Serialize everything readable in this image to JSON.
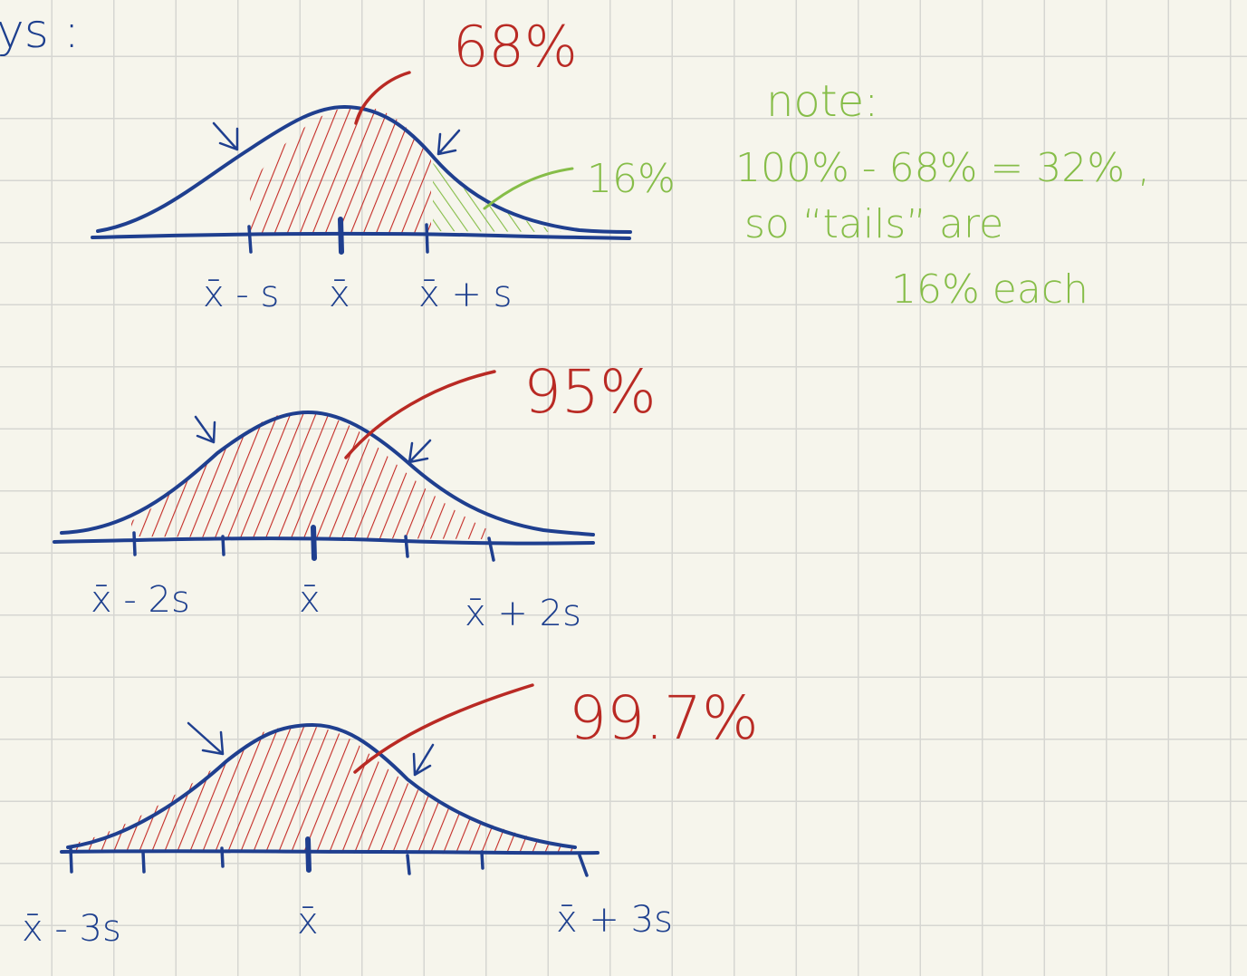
{
  "header_fragment": "ys :",
  "diagram1": {
    "percent_label": "68%",
    "tick_labels": [
      "x̄ - s",
      "x̄",
      "x̄ + s"
    ],
    "tail_label": "16%"
  },
  "note": {
    "title": "note:",
    "line1": "100% - 68% = 32% ,",
    "line2": "so “tails” are",
    "line3": "16% each"
  },
  "diagram2": {
    "percent_label": "95%",
    "tick_labels": [
      "x̄ - 2s",
      "x̄",
      "x̄ + 2s"
    ]
  },
  "diagram3": {
    "percent_label": "99.7%",
    "tick_labels": [
      "x̄ - 3s",
      "x̄",
      "x̄ + 3s"
    ]
  },
  "colors": {
    "curve": "#1f3f8f",
    "shade": "#c42c26",
    "note": "#86bd48",
    "grid": "#d6d6d2",
    "paper": "#f6f5ec"
  }
}
